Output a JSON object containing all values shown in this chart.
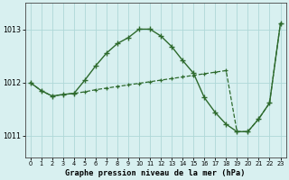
{
  "title": "Graphe pression niveau de la mer (hPa)",
  "x": [
    0,
    1,
    2,
    3,
    4,
    5,
    6,
    7,
    8,
    9,
    10,
    11,
    12,
    13,
    14,
    15,
    16,
    17,
    18,
    19,
    20,
    21,
    22,
    23
  ],
  "y_main": [
    1012.0,
    1011.85,
    1011.75,
    1011.78,
    1011.8,
    1012.05,
    1012.32,
    1012.56,
    1012.74,
    1012.85,
    1013.01,
    1013.01,
    1012.88,
    1012.68,
    1012.42,
    1012.18,
    1011.72,
    1011.44,
    1011.22,
    1011.08,
    1011.08,
    1011.32,
    1011.62,
    1013.12
  ],
  "y_ref": [
    1012.0,
    1011.85,
    1011.75,
    1011.78,
    1011.8,
    1011.83,
    1011.87,
    1011.9,
    1011.93,
    1011.96,
    1011.99,
    1012.02,
    1012.05,
    1012.08,
    1012.11,
    1012.14,
    1012.17,
    1012.2,
    1012.23,
    1011.08,
    1011.08,
    1011.32,
    1011.62,
    1013.12
  ],
  "line_color": "#2d6a2d",
  "bg_color": "#d8f0f0",
  "grid_color": "#afd8d8",
  "ylim": [
    1010.6,
    1013.5
  ],
  "yticks": [
    1011,
    1012,
    1013
  ],
  "xlim": [
    -0.5,
    23.5
  ]
}
